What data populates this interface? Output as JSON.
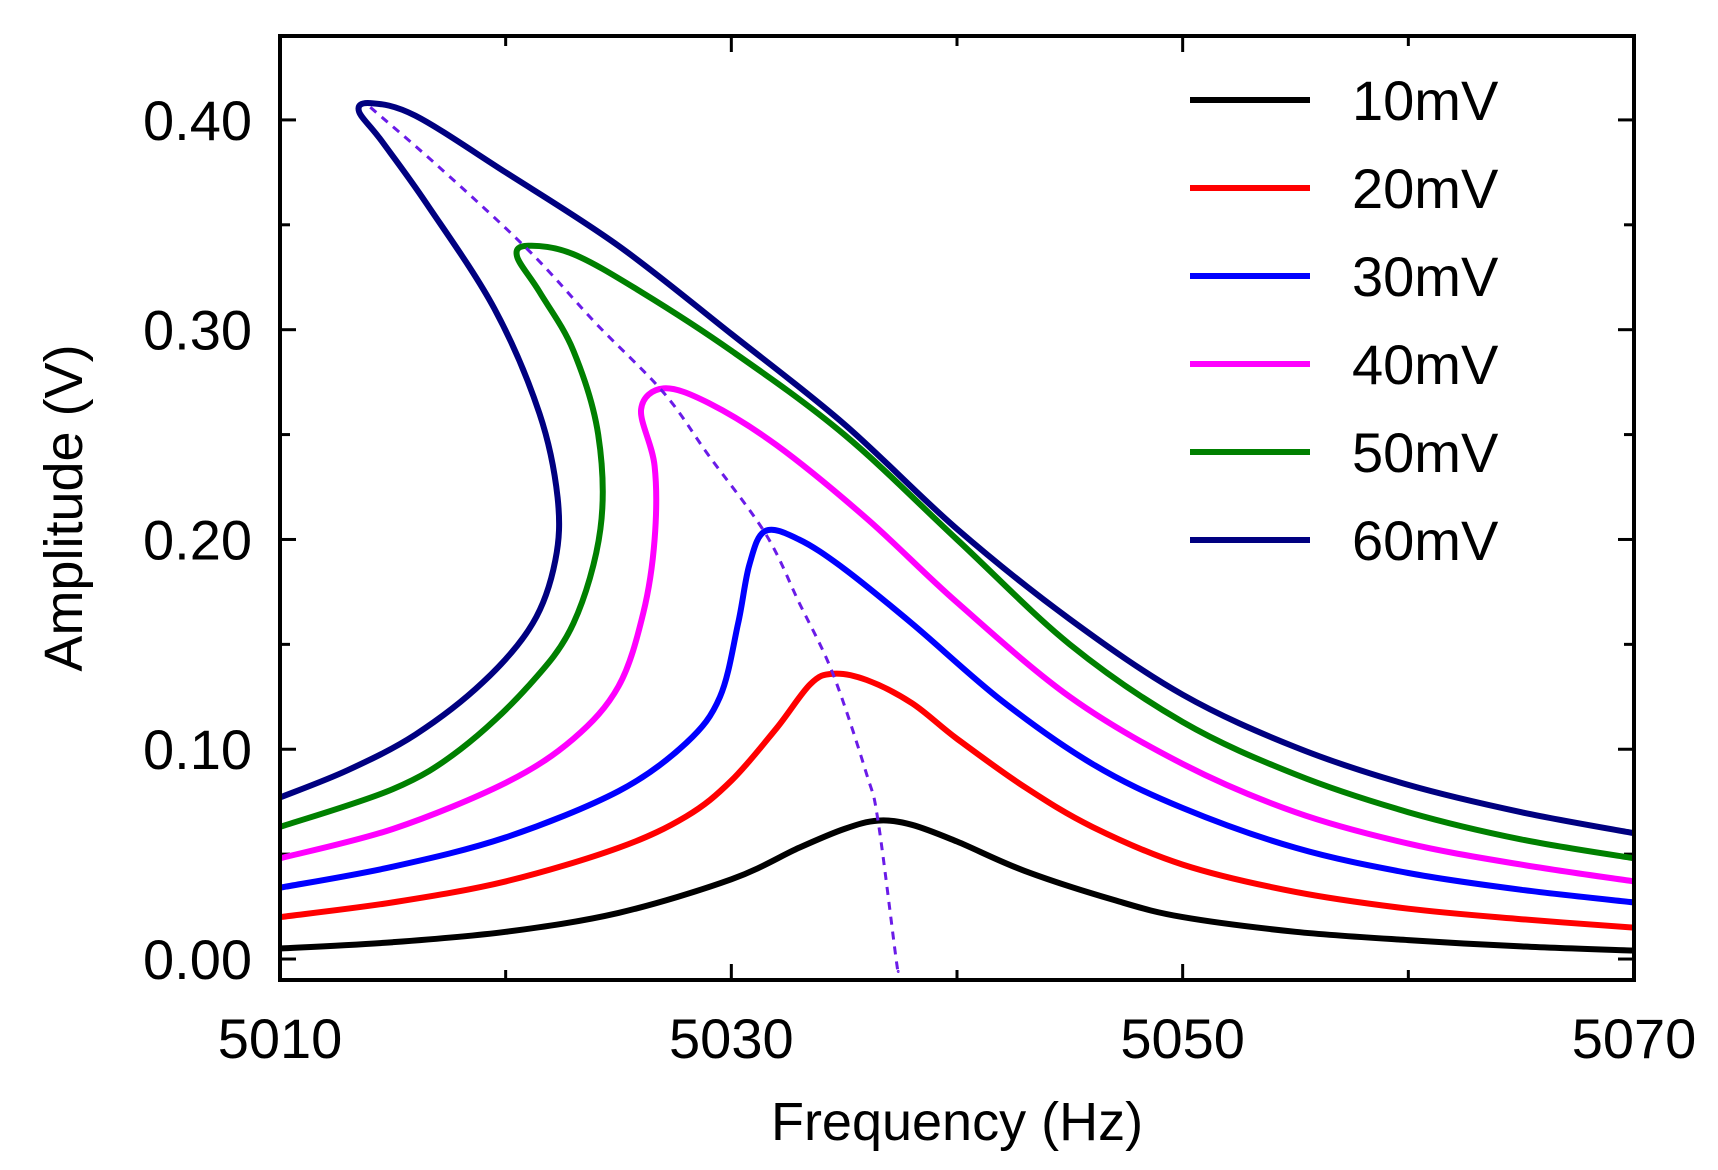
{
  "chart_data": {
    "type": "line",
    "title": "",
    "xlabel": "Frequency (Hz)",
    "ylabel": "Amplitude (V)",
    "xlim": [
      5010,
      5070
    ],
    "ylim": [
      -0.01,
      0.44
    ],
    "xticks": [
      5010,
      5030,
      5050,
      5070
    ],
    "xtick_labels": [
      "5010",
      "5030",
      "5050",
      "5070"
    ],
    "yticks": [
      0.0,
      0.1,
      0.2,
      0.3,
      0.4
    ],
    "ytick_labels": [
      "0.00",
      "0.10",
      "0.20",
      "0.30",
      "0.40"
    ],
    "grid": false,
    "legend_position": "top-right",
    "series": [
      {
        "name": "10mV",
        "color": "#000000",
        "peak_freq": 5036.5,
        "peak_amp": 0.066,
        "points": [
          [
            5010,
            0.005
          ],
          [
            5015,
            0.008
          ],
          [
            5020,
            0.013
          ],
          [
            5025,
            0.022
          ],
          [
            5030,
            0.038
          ],
          [
            5033,
            0.053
          ],
          [
            5035,
            0.062
          ],
          [
            5036.5,
            0.066
          ],
          [
            5038,
            0.064
          ],
          [
            5040,
            0.056
          ],
          [
            5043,
            0.042
          ],
          [
            5047,
            0.028
          ],
          [
            5050,
            0.02
          ],
          [
            5055,
            0.013
          ],
          [
            5060,
            0.009
          ],
          [
            5065,
            0.006
          ],
          [
            5070,
            0.004
          ]
        ]
      },
      {
        "name": "20mV",
        "color": "#ff0000",
        "peak_freq": 5034.5,
        "peak_amp": 0.136,
        "points": [
          [
            5010,
            0.02
          ],
          [
            5015,
            0.027
          ],
          [
            5020,
            0.037
          ],
          [
            5025,
            0.053
          ],
          [
            5028,
            0.068
          ],
          [
            5030,
            0.085
          ],
          [
            5032,
            0.11
          ],
          [
            5033.5,
            0.131
          ],
          [
            5034.5,
            0.136
          ],
          [
            5036,
            0.133
          ],
          [
            5038,
            0.122
          ],
          [
            5040,
            0.105
          ],
          [
            5043,
            0.082
          ],
          [
            5046,
            0.063
          ],
          [
            5050,
            0.045
          ],
          [
            5055,
            0.032
          ],
          [
            5060,
            0.024
          ],
          [
            5065,
            0.019
          ],
          [
            5070,
            0.015
          ]
        ]
      },
      {
        "name": "30mV",
        "color": "#0000ff",
        "peak_freq": 5031.5,
        "peak_amp": 0.204,
        "points": [
          [
            5010,
            0.034
          ],
          [
            5015,
            0.044
          ],
          [
            5020,
            0.058
          ],
          [
            5025,
            0.08
          ],
          [
            5028,
            0.103
          ],
          [
            5029.5,
            0.125
          ],
          [
            5030.3,
            0.16
          ],
          [
            5030.8,
            0.188
          ],
          [
            5031.5,
            0.204
          ],
          [
            5033,
            0.2
          ],
          [
            5035,
            0.186
          ],
          [
            5038,
            0.16
          ],
          [
            5042,
            0.123
          ],
          [
            5046,
            0.093
          ],
          [
            5050,
            0.072
          ],
          [
            5055,
            0.053
          ],
          [
            5060,
            0.041
          ],
          [
            5065,
            0.033
          ],
          [
            5070,
            0.027
          ]
        ]
      },
      {
        "name": "40mV",
        "color": "#ff00ff",
        "peak_freq": 5027,
        "peak_amp": 0.272,
        "points": [
          [
            5010,
            0.048
          ],
          [
            5015,
            0.062
          ],
          [
            5020,
            0.084
          ],
          [
            5023,
            0.105
          ],
          [
            5025,
            0.13
          ],
          [
            5026.1,
            0.165
          ],
          [
            5026.6,
            0.2
          ],
          [
            5026.6,
            0.235
          ],
          [
            5026,
            0.262
          ],
          [
            5027,
            0.272
          ],
          [
            5029,
            0.265
          ],
          [
            5032,
            0.245
          ],
          [
            5036,
            0.21
          ],
          [
            5040,
            0.17
          ],
          [
            5045,
            0.125
          ],
          [
            5050,
            0.093
          ],
          [
            5055,
            0.07
          ],
          [
            5060,
            0.055
          ],
          [
            5065,
            0.045
          ],
          [
            5070,
            0.037
          ]
        ]
      },
      {
        "name": "50mV",
        "color": "#008000",
        "peak_freq": 5021,
        "peak_amp": 0.34,
        "points": [
          [
            5010,
            0.063
          ],
          [
            5015,
            0.081
          ],
          [
            5018,
            0.1
          ],
          [
            5021,
            0.13
          ],
          [
            5023,
            0.16
          ],
          [
            5024.2,
            0.205
          ],
          [
            5024.1,
            0.25
          ],
          [
            5023,
            0.29
          ],
          [
            5021.5,
            0.318
          ],
          [
            5020.5,
            0.335
          ],
          [
            5021,
            0.34
          ],
          [
            5023,
            0.336
          ],
          [
            5026,
            0.318
          ],
          [
            5030,
            0.29
          ],
          [
            5035,
            0.25
          ],
          [
            5040,
            0.2
          ],
          [
            5045,
            0.15
          ],
          [
            5050,
            0.113
          ],
          [
            5055,
            0.088
          ],
          [
            5060,
            0.07
          ],
          [
            5065,
            0.057
          ],
          [
            5070,
            0.048
          ]
        ]
      },
      {
        "name": "60mV",
        "color": "#000080",
        "peak_freq": 5014,
        "peak_amp": 0.408,
        "points": [
          [
            5010,
            0.077
          ],
          [
            5013,
            0.09
          ],
          [
            5016,
            0.107
          ],
          [
            5019,
            0.132
          ],
          [
            5021.2,
            0.16
          ],
          [
            5022.2,
            0.19
          ],
          [
            5022.3,
            0.22
          ],
          [
            5021.5,
            0.26
          ],
          [
            5019.5,
            0.31
          ],
          [
            5016.5,
            0.36
          ],
          [
            5014.5,
            0.39
          ],
          [
            5013.5,
            0.404
          ],
          [
            5014,
            0.408
          ],
          [
            5016,
            0.402
          ],
          [
            5020,
            0.375
          ],
          [
            5025,
            0.34
          ],
          [
            5030,
            0.298
          ],
          [
            5035,
            0.255
          ],
          [
            5040,
            0.205
          ],
          [
            5045,
            0.162
          ],
          [
            5050,
            0.126
          ],
          [
            5055,
            0.101
          ],
          [
            5060,
            0.083
          ],
          [
            5065,
            0.07
          ],
          [
            5070,
            0.06
          ]
        ]
      }
    ],
    "backbone": {
      "name": "backbone",
      "style": "dashed",
      "color": "#6a1be8",
      "points": [
        [
          5014,
          0.406
        ],
        [
          5017,
          0.378
        ],
        [
          5021,
          0.338
        ],
        [
          5024,
          0.303
        ],
        [
          5027,
          0.27
        ],
        [
          5029,
          0.24
        ],
        [
          5031.5,
          0.203
        ],
        [
          5033,
          0.17
        ],
        [
          5034.5,
          0.136
        ],
        [
          5036,
          0.088
        ],
        [
          5036.5,
          0.066
        ],
        [
          5037.3,
          0.0
        ],
        [
          5037.4,
          -0.006
        ]
      ]
    }
  }
}
